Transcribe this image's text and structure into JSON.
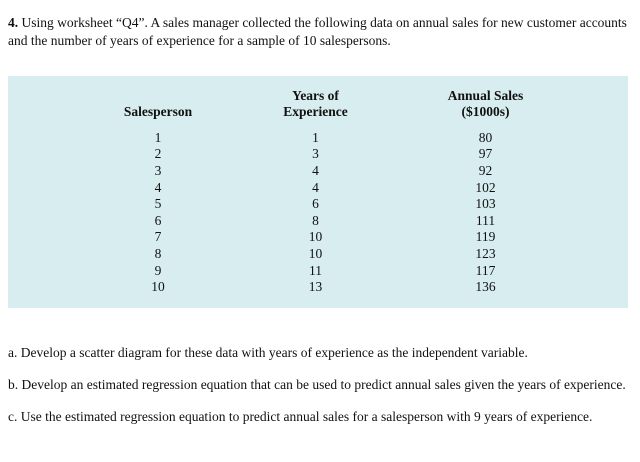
{
  "colors": {
    "table_bg": "#d8edf0",
    "text": "#111111",
    "page_bg": "#ffffff"
  },
  "question": {
    "number": "4.",
    "text": " Using worksheet “Q4”. A sales manager collected the following data on annual sales for new customer accounts and the number of years of experience for a sample of 10 salespersons."
  },
  "table": {
    "headers": {
      "salesperson": "Salesperson",
      "years_line1": "Years of",
      "years_line2": "Experience",
      "sales_line1": "Annual Sales",
      "sales_line2": "($1000s)"
    },
    "rows": [
      {
        "salesperson": "1",
        "years": "1",
        "sales": "80"
      },
      {
        "salesperson": "2",
        "years": "3",
        "sales": "97"
      },
      {
        "salesperson": "3",
        "years": "4",
        "sales": "92"
      },
      {
        "salesperson": "4",
        "years": "4",
        "sales": "102"
      },
      {
        "salesperson": "5",
        "years": "6",
        "sales": "103"
      },
      {
        "salesperson": "6",
        "years": "8",
        "sales": "111"
      },
      {
        "salesperson": "7",
        "years": "10",
        "sales": "119"
      },
      {
        "salesperson": "8",
        "years": "10",
        "sales": "123"
      },
      {
        "salesperson": "9",
        "years": "11",
        "sales": "117"
      },
      {
        "salesperson": "10",
        "years": "13",
        "sales": "136"
      }
    ]
  },
  "parts": [
    {
      "label": "a.",
      "text": "Develop a scatter diagram for these data with years of experience as the independent variable."
    },
    {
      "label": "b.",
      "text": "Develop an estimated regression equation that can be used to predict annual sales given the years of experience."
    },
    {
      "label": "c.",
      "text": "Use the estimated regression equation to predict annual sales for a salesperson with 9 years of experience."
    }
  ]
}
